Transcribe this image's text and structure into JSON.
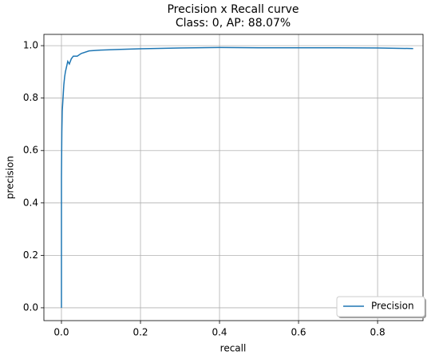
{
  "chart_data": {
    "type": "line",
    "title": "Precision x Recall curve",
    "subtitle": "Class: 0, AP: 88.07%",
    "x_label": "recall",
    "y_label": "precision",
    "x": [
      0,
      0,
      0.001,
      0.002,
      0.004,
      0.006,
      0.008,
      0.01,
      0.013,
      0.016,
      0.02,
      0.025,
      0.03,
      0.04,
      0.05,
      0.07,
      0.1,
      0.15,
      0.2,
      0.3,
      0.4,
      0.5,
      0.6,
      0.7,
      0.8,
      0.89
    ],
    "series": [
      {
        "name": "Precision",
        "color": "#1f77b4",
        "values": [
          0,
          0.5,
          0.67,
          0.75,
          0.8,
          0.85,
          0.88,
          0.9,
          0.92,
          0.94,
          0.93,
          0.95,
          0.96,
          0.96,
          0.97,
          0.98,
          0.983,
          0.986,
          0.988,
          0.991,
          0.993,
          0.992,
          0.992,
          0.992,
          0.991,
          0.989
        ]
      }
    ],
    "xlim": [
      -0.0444,
      0.915
    ],
    "ylim": [
      -0.049,
      1.043
    ],
    "xticks": [
      {
        "value": 0,
        "label": "0.0"
      },
      {
        "value": 0.2,
        "label": "0.2"
      },
      {
        "value": 0.4,
        "label": "0.4"
      },
      {
        "value": 0.6,
        "label": "0.6"
      },
      {
        "value": 0.8,
        "label": "0.8"
      }
    ],
    "yticks": [
      {
        "value": 0,
        "label": "0.0"
      },
      {
        "value": 0.2,
        "label": "0.2"
      },
      {
        "value": 0.4,
        "label": "0.4"
      },
      {
        "value": 0.6,
        "label": "0.6"
      },
      {
        "value": 0.8,
        "label": "0.8"
      },
      {
        "value": 1,
        "label": "1.0"
      }
    ],
    "grid": true,
    "legend": "lower right"
  }
}
